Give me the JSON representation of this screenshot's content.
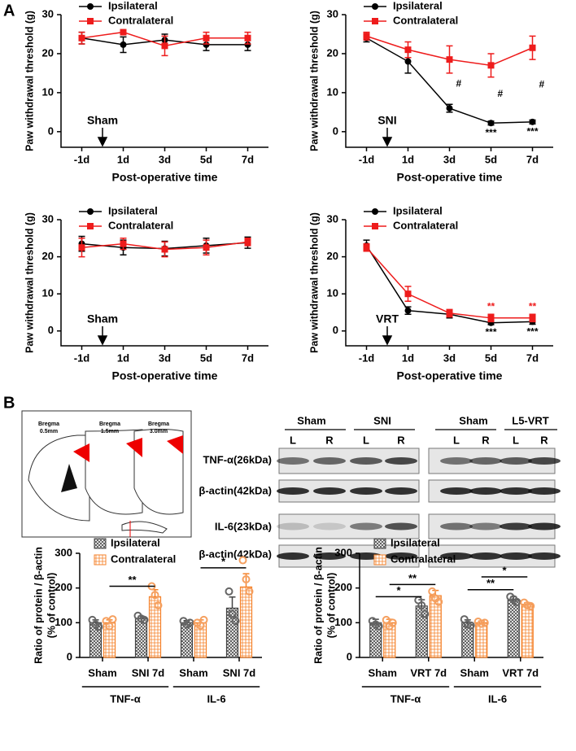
{
  "panel_labels": [
    "A",
    "B"
  ],
  "brain_sections": [
    [
      "Bregma",
      "0.5mm"
    ],
    [
      "Bregma",
      "1.5mm"
    ],
    [
      "Bregma",
      "3.0mm"
    ]
  ],
  "blot": {
    "groups": [
      "Sham",
      "SNI",
      "Sham",
      "L5-VRT"
    ],
    "lanes": [
      "L",
      "R",
      "L",
      "R",
      "L",
      "R",
      "L",
      "R"
    ],
    "proteins": [
      "TNF-α(26kDa)",
      "β-actin(42kDa)",
      "IL-6(23kDa)",
      "β-actin(42kDa)"
    ]
  },
  "chart_data": [
    {
      "type": "line",
      "ylabel": "Paw withdrawal threshold (g)",
      "xlabel": "Post-operative time",
      "categories": [
        "-1d",
        "1d",
        "3d",
        "5d",
        "7d"
      ],
      "ylim": [
        -4,
        30
      ],
      "yticks": [
        0,
        10,
        20,
        30
      ],
      "legend": "upper left",
      "surgery_label": "Sham",
      "series": [
        {
          "name": "Ipsilateral",
          "color": "#000000",
          "marker": "circle",
          "values": [
            24,
            22.3,
            23.5,
            22.3,
            22.3
          ],
          "errors": [
            1.5,
            2,
            1.5,
            1.5,
            1.5
          ]
        },
        {
          "name": "Contralateral",
          "color": "#ee1c1c",
          "marker": "square",
          "values": [
            24,
            25.5,
            22,
            24,
            24
          ],
          "errors": [
            1.5,
            0.5,
            2.5,
            1.5,
            1.5
          ]
        }
      ],
      "annotations": []
    },
    {
      "type": "line",
      "ylabel": "Paw withdrawal threshold (g)",
      "xlabel": "Post-operative time",
      "categories": [
        "-1d",
        "1d",
        "3d",
        "5d",
        "7d"
      ],
      "ylim": [
        -4,
        30
      ],
      "yticks": [
        0,
        10,
        20,
        30
      ],
      "legend": "upper left",
      "surgery_label": "SNI",
      "series": [
        {
          "name": "Ipsilateral",
          "color": "#000000",
          "marker": "circle",
          "values": [
            24,
            18,
            6,
            2.2,
            2.5
          ],
          "errors": [
            1,
            3,
            1,
            0.5,
            0.5
          ]
        },
        {
          "name": "Contralateral",
          "color": "#ee1c1c",
          "marker": "square",
          "values": [
            24.5,
            21,
            18.5,
            17,
            21.5
          ],
          "errors": [
            1,
            2,
            3.5,
            3,
            3
          ]
        }
      ],
      "annotations": [
        {
          "text": "#",
          "category": 2,
          "series": 0,
          "position": "between",
          "color": "#000000"
        },
        {
          "text": "#",
          "category": 3,
          "series": 0,
          "position": "between",
          "color": "#000000"
        },
        {
          "text": "#",
          "category": 4,
          "series": 0,
          "position": "between",
          "color": "#000000"
        },
        {
          "text": "***",
          "category": 3,
          "series": 0,
          "position": "below",
          "color": "#000000"
        },
        {
          "text": "***",
          "category": 4,
          "series": 0,
          "position": "below",
          "color": "#000000"
        }
      ]
    },
    {
      "type": "line",
      "ylabel": "Paw withdrawal threshold (g)",
      "xlabel": "Post-operative time",
      "categories": [
        "-1d",
        "1d",
        "3d",
        "5d",
        "7d"
      ],
      "ylim": [
        -4,
        30
      ],
      "yticks": [
        0,
        10,
        20,
        30
      ],
      "legend": "upper left",
      "surgery_label": "Sham",
      "series": [
        {
          "name": "Ipsilateral",
          "color": "#000000",
          "marker": "circle",
          "values": [
            23.5,
            22.5,
            22.2,
            23,
            23.8
          ],
          "errors": [
            2,
            2,
            2,
            2,
            1.5
          ]
        },
        {
          "name": "Contralateral",
          "color": "#ee1c1c",
          "marker": "square",
          "values": [
            22.5,
            23.5,
            22,
            22.5,
            24
          ],
          "errors": [
            2.5,
            1.5,
            2,
            2,
            1
          ]
        }
      ],
      "annotations": []
    },
    {
      "type": "line",
      "ylabel": "Paw withdrawal threshold (g)",
      "xlabel": "Post-operative time",
      "categories": [
        "-1d",
        "1d",
        "3d",
        "5d",
        "7d"
      ],
      "ylim": [
        -4,
        30
      ],
      "yticks": [
        0,
        10,
        20,
        30
      ],
      "legend": "upper left",
      "surgery_label": "VRT",
      "series": [
        {
          "name": "Ipsilateral",
          "color": "#000000",
          "marker": "circle",
          "values": [
            23,
            5.5,
            4.5,
            2.2,
            2.5
          ],
          "errors": [
            1.5,
            1,
            1,
            0.5,
            0.7
          ]
        },
        {
          "name": "Contralateral",
          "color": "#ee1c1c",
          "marker": "square",
          "values": [
            22.5,
            10,
            4.8,
            3.5,
            3.5
          ],
          "errors": [
            1,
            2,
            1,
            1,
            1
          ]
        }
      ],
      "annotations": [
        {
          "text": "***",
          "category": 3,
          "series": 0,
          "position": "below",
          "color": "#000000"
        },
        {
          "text": "***",
          "category": 4,
          "series": 0,
          "position": "below",
          "color": "#000000"
        },
        {
          "text": "**",
          "category": 3,
          "series": 1,
          "position": "above",
          "color": "#ee1c1c"
        },
        {
          "text": "**",
          "category": 4,
          "series": 1,
          "position": "above",
          "color": "#ee1c1c"
        }
      ]
    },
    {
      "type": "bar",
      "ylabel": [
        "Ratio of protein / β-actin",
        "(% of control)"
      ],
      "categories": [
        "Sham",
        "SNI 7d",
        "Sham",
        "SNI 7d"
      ],
      "groups": [
        "TNF-α",
        "IL-6"
      ],
      "ylim": [
        0,
        300
      ],
      "yticks": [
        0,
        100,
        200,
        300
      ],
      "legend": "upper left",
      "series": [
        {
          "name": "Ipsilateral",
          "color": "#444444",
          "values": [
            100,
            113,
            100,
            142
          ],
          "errors": [
            8,
            6,
            6,
            32
          ],
          "points": [
            [
              108,
              95,
              88
            ],
            [
              120,
              112,
              108
            ],
            [
              105,
              95,
              100
            ],
            [
              190,
              125,
              105
            ]
          ]
        },
        {
          "name": "Contralateral",
          "color": "#f5822a",
          "values": [
            100,
            175,
            100,
            203
          ],
          "errors": [
            8,
            20,
            8,
            38
          ],
          "points": [
            [
              105,
              90,
              110
            ],
            [
              205,
              180,
              150
            ],
            [
              100,
              92,
              108
            ],
            [
              280,
              225,
              190
            ]
          ]
        }
      ],
      "significance": [
        {
          "text": "**",
          "from": [
            0,
            1
          ],
          "to": [
            1,
            1
          ],
          "y": 205
        },
        {
          "text": "*",
          "from": [
            2,
            1
          ],
          "to": [
            3,
            1
          ],
          "y": 258
        }
      ]
    },
    {
      "type": "bar",
      "ylabel": [
        "Ratio of protein / β-actin",
        "(% of control)"
      ],
      "categories": [
        "Sham",
        "VRT 7d",
        "Sham",
        "VRT 7d"
      ],
      "groups": [
        "TNF-α",
        "IL-6"
      ],
      "ylim": [
        0,
        300
      ],
      "yticks": [
        0,
        100,
        200,
        300
      ],
      "legend": "upper left",
      "series": [
        {
          "name": "Ipsilateral",
          "color": "#444444",
          "values": [
            100,
            148,
            100,
            165
          ],
          "errors": [
            10,
            18,
            8,
            10
          ],
          "points": [
            [
              105,
              95,
              90
            ],
            [
              165,
              150,
              125
            ],
            [
              110,
              95,
              92
            ],
            [
              175,
              168,
              160
            ]
          ]
        },
        {
          "name": "Contralateral",
          "color": "#f5822a",
          "values": [
            100,
            178,
            100,
            153
          ],
          "errors": [
            10,
            15,
            5,
            5
          ],
          "points": [
            [
              108,
              90,
              100
            ],
            [
              190,
              170,
              160
            ],
            [
              103,
              97,
              100
            ],
            [
              158,
              150,
              148
            ]
          ]
        }
      ],
      "significance": [
        {
          "text": "*",
          "from": [
            0,
            0
          ],
          "to": [
            1,
            0
          ],
          "y": 175
        },
        {
          "text": "**",
          "from": [
            0,
            1
          ],
          "to": [
            1,
            1
          ],
          "y": 210
        },
        {
          "text": "**",
          "from": [
            2,
            0
          ],
          "to": [
            3,
            0
          ],
          "y": 195
        },
        {
          "text": "*",
          "from": [
            2,
            1
          ],
          "to": [
            3,
            1
          ],
          "y": 232
        }
      ]
    }
  ]
}
